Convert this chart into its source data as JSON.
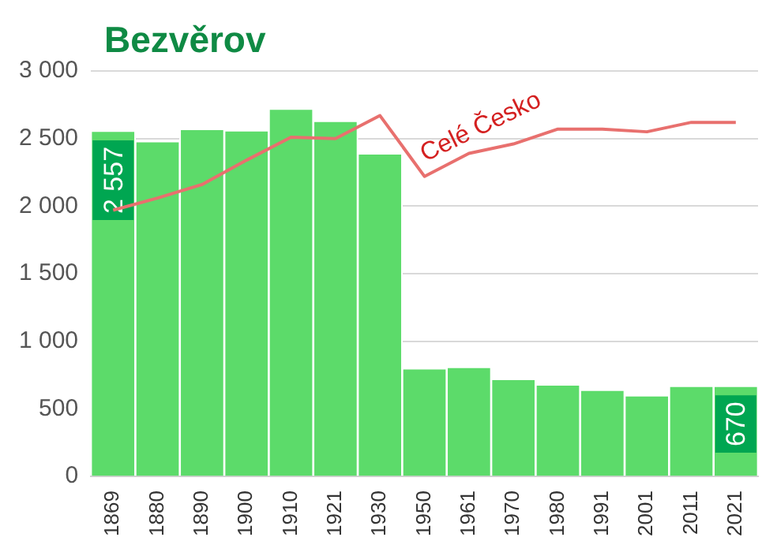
{
  "chart_data": {
    "type": "bar",
    "title": "Bezvěrov",
    "categories": [
      "1869",
      "1880",
      "1890",
      "1900",
      "1910",
      "1921",
      "1930",
      "1950",
      "1961",
      "1970",
      "1980",
      "1991",
      "2001",
      "2011",
      "2021"
    ],
    "series": [
      {
        "color": "#5cdb6a",
        "values": [
          2557,
          2480,
          2570,
          2560,
          2720,
          2630,
          2390,
          800,
          810,
          720,
          680,
          640,
          600,
          670,
          670
        ],
        "value_labels": [
          "2 557",
          null,
          null,
          null,
          null,
          null,
          null,
          null,
          null,
          null,
          null,
          null,
          null,
          null,
          "670"
        ]
      },
      {
        "type": "line",
        "name": "Celé Česko",
        "color": "#e8706e",
        "values": [
          1970,
          2060,
          2160,
          2340,
          2510,
          2500,
          2670,
          2220,
          2390,
          2460,
          2570,
          2570,
          2550,
          2620,
          2620
        ]
      }
    ],
    "ylim": [
      0,
      3000
    ],
    "yticks": [
      {
        "value": 0,
        "label": "0"
      },
      {
        "value": 500,
        "label": "500"
      },
      {
        "value": 1000,
        "label": "1 000"
      },
      {
        "value": 1500,
        "label": "1 500"
      },
      {
        "value": 2000,
        "label": "2 000"
      },
      {
        "value": 2500,
        "label": "2 500"
      },
      {
        "value": 3000,
        "label": "3 000"
      }
    ],
    "grid": "y",
    "legend": false,
    "marker": "none",
    "line_style": "solid"
  }
}
